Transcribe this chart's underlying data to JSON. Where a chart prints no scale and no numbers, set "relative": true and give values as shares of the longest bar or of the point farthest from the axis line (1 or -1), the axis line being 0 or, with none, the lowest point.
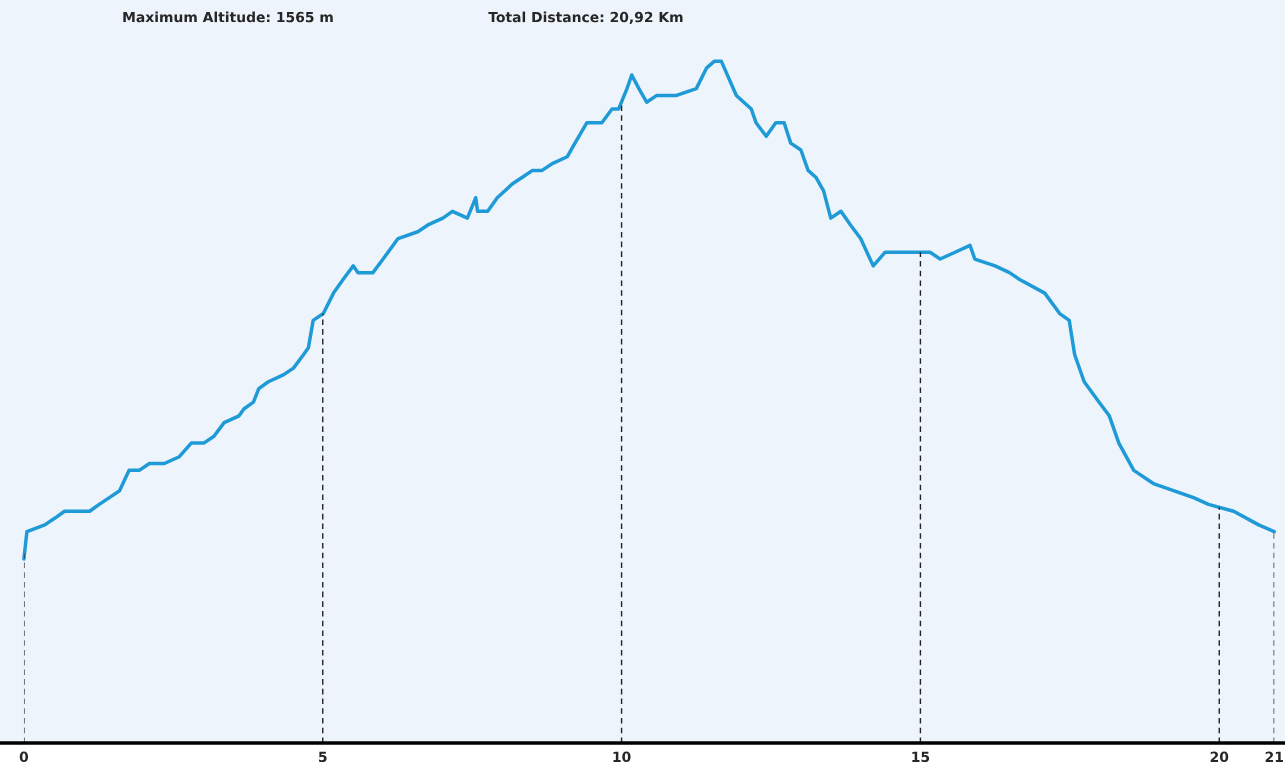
{
  "chart_data": {
    "type": "line",
    "relative": true,
    "annotations": [
      "Maximum Altitude: 1565 m",
      "Total Distance: 20,92 Km"
    ],
    "xlim": [
      -0.4,
      21.1
    ],
    "xticks": [
      0,
      5,
      10,
      15,
      20,
      {
        "value": 20.92,
        "label": "21"
      }
    ],
    "tick_labels": "x",
    "grid": false,
    "series": [
      {
        "color": "#1e9ad6",
        "x": [
          0,
          0.05,
          0.35,
          0.52,
          0.68,
          0.85,
          1.1,
          1.26,
          1.43,
          1.6,
          1.76,
          1.93,
          2.1,
          2.35,
          2.6,
          2.8,
          3.01,
          3.18,
          3.35,
          3.6,
          3.68,
          3.84,
          3.93,
          4.09,
          4.34,
          4.51,
          4.68,
          4.76,
          4.84,
          5.01,
          5.18,
          5.34,
          5.51,
          5.59,
          5.84,
          6.01,
          6.26,
          6.59,
          6.76,
          7.01,
          7.17,
          7.42,
          7.56,
          7.59,
          7.76,
          7.92,
          8.17,
          8.34,
          8.51,
          8.67,
          8.84,
          9.09,
          9.22,
          9.42,
          9.67,
          9.84,
          9.95,
          10.09,
          10.17,
          10.29,
          10.42,
          10.59,
          10.92,
          11.25,
          11.42,
          11.55,
          11.67,
          11.92,
          12.17,
          12.25,
          12.42,
          12.5,
          12.58,
          12.72,
          12.83,
          13.0,
          13.12,
          13.25,
          13.38,
          13.5,
          13.67,
          13.83,
          14.0,
          14.21,
          14.41,
          14.83,
          15.16,
          15.33,
          15.58,
          15.83,
          15.91,
          16.25,
          16.49,
          16.66,
          17.08,
          17.33,
          17.49,
          17.58,
          17.74,
          17.99,
          18.16,
          18.32,
          18.57,
          18.91,
          19.57,
          19.82,
          20.24,
          20.66,
          20.92
        ],
        "values": [
          0.27,
          0.31,
          0.32,
          0.33,
          0.34,
          0.34,
          0.34,
          0.35,
          0.36,
          0.37,
          0.4,
          0.4,
          0.41,
          0.41,
          0.42,
          0.44,
          0.44,
          0.45,
          0.47,
          0.48,
          0.49,
          0.5,
          0.52,
          0.53,
          0.54,
          0.55,
          0.57,
          0.58,
          0.62,
          0.63,
          0.66,
          0.68,
          0.7,
          0.69,
          0.69,
          0.71,
          0.74,
          0.75,
          0.76,
          0.77,
          0.78,
          0.77,
          0.8,
          0.78,
          0.78,
          0.8,
          0.82,
          0.83,
          0.84,
          0.84,
          0.85,
          0.86,
          0.88,
          0.91,
          0.91,
          0.93,
          0.93,
          0.96,
          0.98,
          0.96,
          0.94,
          0.95,
          0.95,
          0.96,
          0.99,
          1.0,
          1.0,
          0.95,
          0.93,
          0.91,
          0.89,
          0.9,
          0.91,
          0.91,
          0.88,
          0.87,
          0.84,
          0.83,
          0.81,
          0.77,
          0.78,
          0.76,
          0.74,
          0.7,
          0.72,
          0.72,
          0.72,
          0.71,
          0.72,
          0.73,
          0.71,
          0.7,
          0.69,
          0.68,
          0.66,
          0.63,
          0.62,
          0.57,
          0.53,
          0.5,
          0.48,
          0.44,
          0.4,
          0.38,
          0.36,
          0.35,
          0.34,
          0.32,
          0.31
        ]
      }
    ],
    "ref_lines": [
      {
        "axis": "x",
        "value": 0,
        "color": "#222222",
        "line_style": "dashed"
      },
      {
        "axis": "x",
        "value": 5,
        "color": "#222222",
        "line_style": "dashed"
      },
      {
        "axis": "x",
        "value": 10,
        "color": "#222222",
        "line_style": "dashed"
      },
      {
        "axis": "x",
        "value": 15,
        "color": "#222222",
        "line_style": "dashed"
      },
      {
        "axis": "x",
        "value": 20,
        "color": "#222222",
        "line_style": "dashed"
      },
      {
        "axis": "x",
        "value": 20.92,
        "color": "#222222",
        "line_style": "dashed"
      }
    ]
  }
}
